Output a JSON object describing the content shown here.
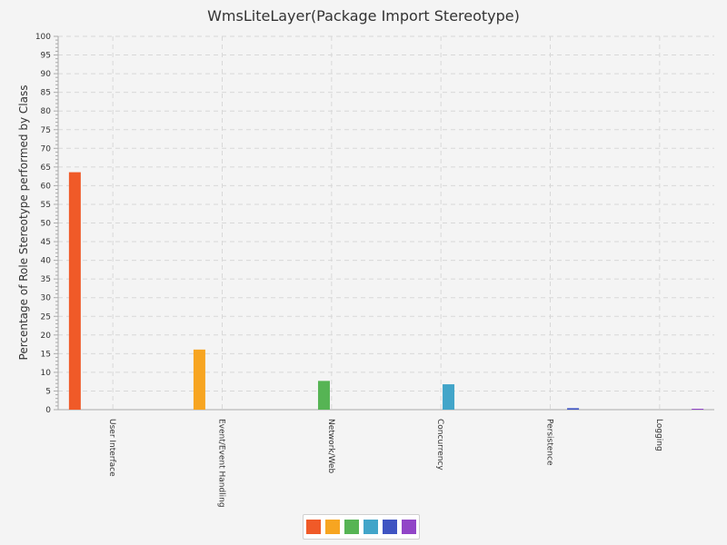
{
  "chart_data": {
    "type": "bar",
    "title": "WmsLiteLayer(Package Import Stereotype)",
    "xlabel": "",
    "ylabel": "Percentage of Role Stereotype performed by Class",
    "ylim": [
      0,
      100
    ],
    "ytick_step": 5,
    "grid": true,
    "legend": "bottom",
    "categories": [
      "User Interface",
      "Event/Event Handling",
      "Network/Web",
      "Concurrency",
      "Persistence",
      "Logging"
    ],
    "series": [
      {
        "values": [
          63.6,
          null,
          null,
          null,
          null,
          null
        ],
        "color": "#f05a28"
      },
      {
        "values": [
          null,
          16.1,
          null,
          null,
          null,
          null
        ],
        "color": "#f7a521"
      },
      {
        "values": [
          null,
          null,
          7.7,
          null,
          null,
          null
        ],
        "color": "#56b454"
      },
      {
        "values": [
          null,
          null,
          null,
          6.8,
          null,
          null
        ],
        "color": "#42a5c9"
      },
      {
        "values": [
          null,
          null,
          null,
          null,
          0.4,
          null
        ],
        "color": "#3f54c2"
      },
      {
        "values": [
          null,
          null,
          null,
          null,
          null,
          0.2
        ],
        "color": "#9145c7"
      }
    ]
  }
}
